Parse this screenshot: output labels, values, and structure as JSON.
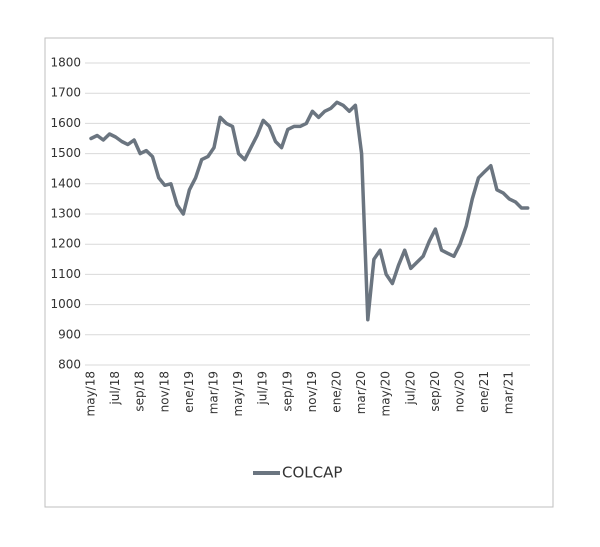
{
  "chart_data": {
    "type": "line",
    "categories": [
      "may/18",
      null,
      null,
      null,
      "jul/18",
      null,
      null,
      null,
      "sep/18",
      null,
      null,
      null,
      "nov/18",
      null,
      null,
      null,
      "ene/19",
      null,
      null,
      null,
      "mar/19",
      null,
      null,
      null,
      "may/19",
      null,
      null,
      null,
      "jul/19",
      null,
      null,
      null,
      "sep/19",
      null,
      null,
      null,
      "nov/19",
      null,
      null,
      null,
      "ene/20",
      null,
      null,
      null,
      "mar/20",
      null,
      null,
      null,
      "may/20",
      null,
      null,
      null,
      "jul/20",
      null,
      null,
      null,
      "sep/20",
      null,
      null,
      null,
      "nov/20",
      null,
      null,
      null,
      "ene/21",
      null,
      null,
      null,
      "mar/21",
      null,
      null,
      null
    ],
    "series": [
      {
        "name": "COLCAP",
        "color": "#6b7580",
        "values": [
          1550,
          1560,
          1545,
          1565,
          1555,
          1540,
          1530,
          1545,
          1500,
          1510,
          1490,
          1420,
          1395,
          1400,
          1330,
          1300,
          1380,
          1420,
          1480,
          1490,
          1520,
          1620,
          1600,
          1590,
          1500,
          1480,
          1520,
          1560,
          1610,
          1590,
          1540,
          1520,
          1580,
          1590,
          1590,
          1600,
          1640,
          1620,
          1640,
          1650,
          1670,
          1660,
          1640,
          1660,
          1500,
          950,
          1150,
          1180,
          1100,
          1070,
          1130,
          1180,
          1120,
          1140,
          1160,
          1210,
          1250,
          1180,
          1170,
          1160,
          1200,
          1260,
          1350,
          1420,
          1440,
          1460,
          1380,
          1370,
          1350,
          1340,
          1320,
          1320
        ]
      }
    ],
    "ylim": [
      800,
      1800
    ],
    "yticks": [
      800,
      900,
      1000,
      1100,
      1200,
      1300,
      1400,
      1500,
      1600,
      1700,
      1800
    ],
    "grid": true
  }
}
